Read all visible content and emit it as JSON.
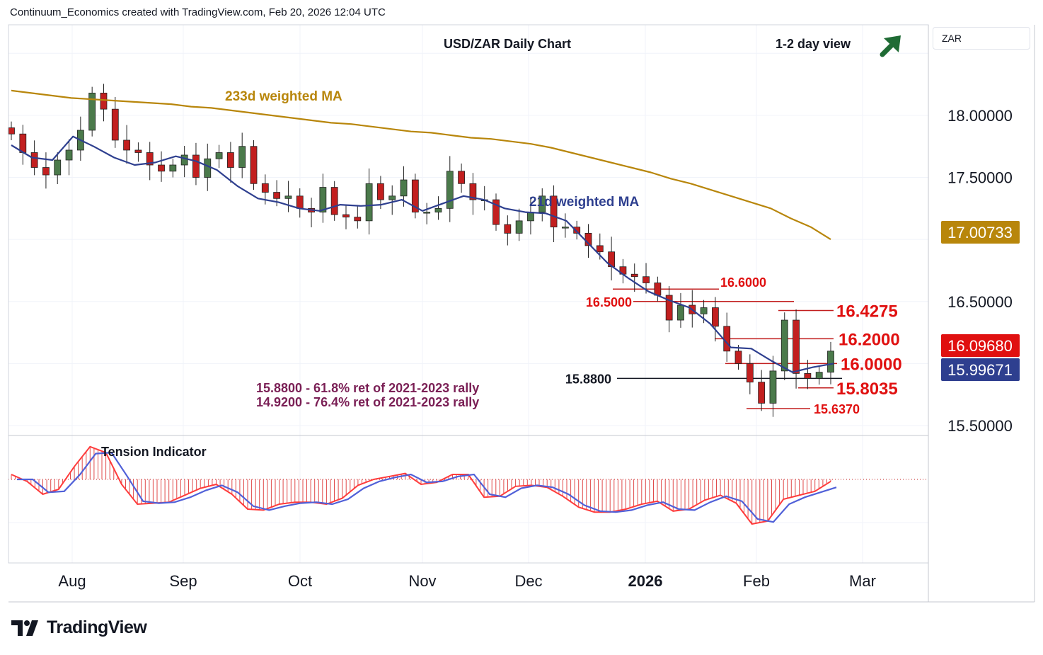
{
  "header": {
    "attribution": "Continuum_Economics created with TradingView.com, Feb 20, 2026 12:04 UTC"
  },
  "brand": {
    "name": "TradingView"
  },
  "currency_box": {
    "label": "ZAR"
  },
  "colors": {
    "up": "#4b7a4b",
    "down": "#c21f1f",
    "ma21": "#2e3f8f",
    "ma233": "#b8860b",
    "red_label": "#e01010",
    "purple_text": "#7a1f55",
    "arrow": "#1f6b34"
  },
  "chart_data": [
    {
      "type": "candlestick",
      "title": "USD/ZAR Daily Chart",
      "subtitle": "1-2 day view",
      "outlook_icon": "up-arrow-icon",
      "x_ticks": [
        "Aug",
        "Sep",
        "Oct",
        "Nov",
        "Dec",
        "2026",
        "Feb",
        "Mar"
      ],
      "y_ticks": [
        "18.00000",
        "17.50000",
        "16.50000",
        "15.50000"
      ],
      "ylim": [
        15.42,
        18.73
      ],
      "price_tags": [
        {
          "label": "17.00733",
          "value": 17.00733,
          "color": "#b8860b"
        },
        {
          "label": "16.09680",
          "value": 16.0968,
          "color": "#e01010"
        },
        {
          "label": "15.99671",
          "value": 15.99671,
          "color": "#2e3f8f"
        }
      ],
      "moving_averages": [
        {
          "name": "233d weighted MA",
          "color": "#b8860b",
          "values": [
            18.2,
            18.18,
            18.16,
            18.14,
            18.13,
            18.12,
            18.11,
            18.1,
            18.09,
            18.07,
            18.06,
            18.04,
            18.02,
            18.0,
            17.98,
            17.96,
            17.94,
            17.93,
            17.91,
            17.89,
            17.87,
            17.86,
            17.84,
            17.82,
            17.81,
            17.79,
            17.77,
            17.74,
            17.7,
            17.66,
            17.62,
            17.58,
            17.54,
            17.49,
            17.45,
            17.4,
            17.35,
            17.3,
            17.25,
            17.17,
            17.1,
            17.0
          ]
        },
        {
          "name": "21d weighted MA",
          "color": "#2e3f8f",
          "values": [
            17.76,
            17.66,
            17.64,
            17.83,
            17.75,
            17.66,
            17.6,
            17.62,
            17.67,
            17.63,
            17.56,
            17.43,
            17.33,
            17.3,
            17.25,
            17.23,
            17.28,
            17.27,
            17.28,
            17.32,
            17.23,
            17.29,
            17.35,
            17.32,
            17.25,
            17.22,
            17.21,
            17.15,
            16.98,
            16.81,
            16.69,
            16.58,
            16.51,
            16.45,
            16.32,
            16.13,
            16.12,
            16.02,
            15.93,
            15.97,
            16.0
          ]
        }
      ],
      "levels": [
        {
          "label": "16.6000",
          "value": 16.6
        },
        {
          "label": "16.5000",
          "value": 16.5
        },
        {
          "label": "16.4275",
          "value": 16.4275
        },
        {
          "label": "16.2000",
          "value": 16.2
        },
        {
          "label": "16.0000",
          "value": 16.0
        },
        {
          "label": "15.8800",
          "value": 15.88
        },
        {
          "label": "15.8035",
          "value": 15.8035
        },
        {
          "label": "15.6370",
          "value": 15.637
        }
      ],
      "annotations": [
        "15.8800 - 61.8% ret of 2021-2023 rally",
        "14.9200 - 76.4% ret of 2021-2023 rally"
      ],
      "close": [
        17.85,
        17.7,
        17.58,
        17.52,
        17.64,
        17.72,
        17.88,
        18.18,
        18.05,
        17.8,
        17.72,
        17.7,
        17.6,
        17.55,
        17.6,
        17.68,
        17.5,
        17.65,
        17.7,
        17.58,
        17.75,
        17.45,
        17.38,
        17.33,
        17.35,
        17.25,
        17.22,
        17.42,
        17.2,
        17.18,
        17.15,
        17.45,
        17.32,
        17.35,
        17.48,
        17.22,
        17.22,
        17.25,
        17.55,
        17.45,
        17.32,
        17.32,
        17.12,
        17.05,
        17.15,
        17.22,
        17.35,
        17.1,
        17.1,
        17.05,
        16.95,
        16.9,
        16.78,
        16.72,
        16.7,
        16.65,
        16.55,
        16.35,
        16.47,
        16.4,
        16.45,
        16.3,
        16.1,
        16.0,
        15.85,
        15.68,
        15.94,
        16.35,
        15.92,
        15.88,
        15.93,
        16.1
      ]
    },
    {
      "type": "histogram",
      "title": "Tension Indicator",
      "histogram": [
        0.5,
        -0.2,
        -1.5,
        -1.0,
        1.3,
        3.3,
        2.7,
        -0.5,
        -2.5,
        -2.4,
        -2.3,
        -1.6,
        -0.9,
        -0.5,
        -1.5,
        -3.0,
        -3.1,
        -2.5,
        -2.3,
        -2.3,
        -2.5,
        -1.9,
        -0.6,
        0.0,
        0.3,
        0.6,
        -0.5,
        -0.3,
        0.5,
        0.5,
        -1.8,
        -1.7,
        -0.7,
        -0.6,
        -0.8,
        -1.7,
        -2.8,
        -3.3,
        -3.3,
        -3.0,
        -2.5,
        -2.2,
        -3.2,
        -3.0,
        -2.1,
        -1.6,
        -2.4,
        -4.5,
        -4.2,
        -2.0,
        -1.6,
        -1.2,
        -0.2
      ],
      "signal": [
        0.0,
        0.0,
        -1.3,
        -1.2,
        0.5,
        2.6,
        2.7,
        0.3,
        -2.2,
        -2.4,
        -2.3,
        -1.8,
        -1.1,
        -0.6,
        -1.3,
        -2.7,
        -3.1,
        -2.7,
        -2.4,
        -2.3,
        -2.5,
        -2.0,
        -0.9,
        -0.2,
        0.2,
        0.5,
        -0.3,
        -0.2,
        0.3,
        0.5,
        -1.5,
        -1.8,
        -0.9,
        -0.6,
        -0.8,
        -1.5,
        -2.6,
        -3.2,
        -3.3,
        -3.1,
        -2.6,
        -2.3,
        -3.0,
        -3.1,
        -2.3,
        -1.7,
        -2.2,
        -4.0,
        -4.3,
        -2.5,
        -1.8,
        -1.3,
        -0.8
      ]
    }
  ]
}
